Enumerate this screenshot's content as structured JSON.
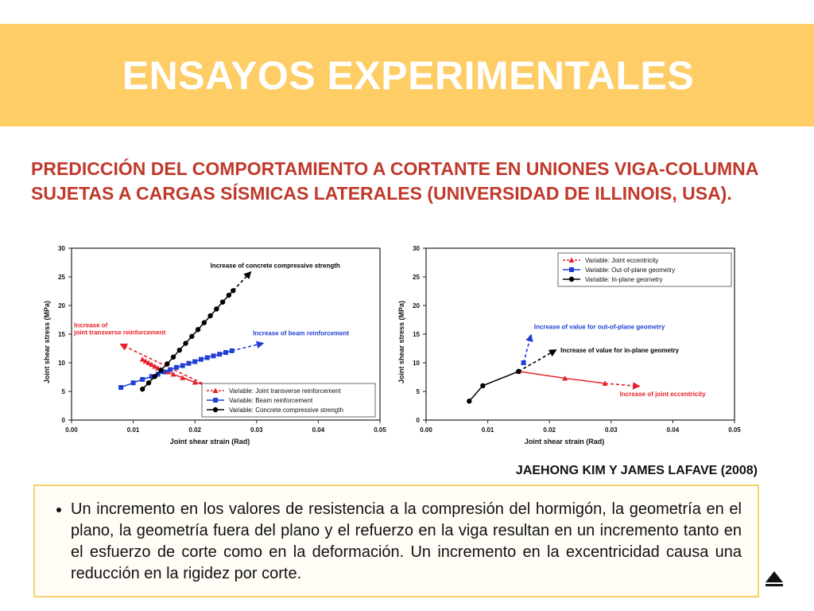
{
  "slide": {
    "title": "ENSAYOS EXPERIMENTALES",
    "subtitle": "PREDICCIÓN DEL COMPORTAMIENTO A CORTANTE EN UNIONES VIGA-COLUMNA SUJETAS A CARGAS SÍSMICAS LATERALES (UNIVERSIDAD DE ILLINOIS, USA).",
    "citation": "JAEHONG KIM Y JAMES LAFAVE (2008)",
    "bullet": "Un incremento en los valores de resistencia a la compresión del hormigón, la geometría en el plano, la geometría fuera del plano y  el refuerzo en la viga resultan en un incremento tanto en el esfuerzo de corte como en la deformación. Un incremento en la excentricidad causa una reducción en la rigidez por corte.",
    "colors": {
      "banner": "#fecd66",
      "title_text": "#ffffff",
      "subtitle_text": "#c0392b",
      "box_border": "#f3d26b"
    },
    "nav_icon": "triangle-up-icon"
  },
  "chart_data": [
    {
      "type": "scatter",
      "title": "",
      "xlabel": "Joint shear strain (Rad)",
      "ylabel": "Joint shear stress (MPa)",
      "xlim": [
        0,
        0.05
      ],
      "ylim": [
        0,
        30
      ],
      "xticks": [
        "0.00",
        "0.01",
        "0.02",
        "0.03",
        "0.04",
        "0.05"
      ],
      "yticks": [
        "0",
        "5",
        "10",
        "15",
        "20",
        "25",
        "30"
      ],
      "legend_position": "bottom-right",
      "series": [
        {
          "name": "Variable: Joint transverse reinforcement",
          "color": "#e8202a",
          "marker": "triangle",
          "points": [
            [
              0.0115,
              10.6
            ],
            [
              0.012,
              10.3
            ],
            [
              0.0125,
              10.0
            ],
            [
              0.013,
              9.7
            ],
            [
              0.0135,
              9.4
            ],
            [
              0.014,
              9.1
            ],
            [
              0.0145,
              8.8
            ],
            [
              0.0155,
              8.4
            ],
            [
              0.0165,
              8.0
            ],
            [
              0.018,
              7.4
            ],
            [
              0.02,
              6.6
            ],
            [
              0.022,
              6.0
            ]
          ],
          "trend": [
            [
              0.022,
              6.0
            ],
            [
              0.008,
              13.2
            ]
          ]
        },
        {
          "name": "Variable: Beam reinforcement",
          "color": "#1f3fd6",
          "marker": "square",
          "points": [
            [
              0.008,
              5.7
            ],
            [
              0.01,
              6.5
            ],
            [
              0.0115,
              7.1
            ],
            [
              0.013,
              7.6
            ],
            [
              0.014,
              8.0
            ],
            [
              0.015,
              8.4
            ],
            [
              0.016,
              8.8
            ],
            [
              0.017,
              9.2
            ],
            [
              0.018,
              9.5
            ],
            [
              0.019,
              9.9
            ],
            [
              0.02,
              10.2
            ],
            [
              0.021,
              10.6
            ],
            [
              0.022,
              10.9
            ],
            [
              0.023,
              11.2
            ],
            [
              0.024,
              11.5
            ],
            [
              0.025,
              11.8
            ],
            [
              0.026,
              12.1
            ]
          ],
          "trend": [
            [
              0.026,
              12.1
            ],
            [
              0.031,
              13.4
            ]
          ]
        },
        {
          "name": "Variable: Concrete compressive strength",
          "color": "#000000",
          "marker": "circle",
          "points": [
            [
              0.0115,
              5.4
            ],
            [
              0.0125,
              6.5
            ],
            [
              0.0135,
              7.6
            ],
            [
              0.0145,
              8.7
            ],
            [
              0.0155,
              9.8
            ],
            [
              0.0165,
              11.0
            ],
            [
              0.0175,
              12.2
            ],
            [
              0.0185,
              13.4
            ],
            [
              0.0195,
              14.6
            ],
            [
              0.0205,
              15.8
            ],
            [
              0.0215,
              17.0
            ],
            [
              0.0225,
              18.2
            ],
            [
              0.0235,
              19.4
            ],
            [
              0.0245,
              20.6
            ],
            [
              0.0255,
              21.8
            ],
            [
              0.0262,
              22.6
            ]
          ],
          "trend": [
            [
              0.0262,
              22.6
            ],
            [
              0.029,
              25.8
            ]
          ]
        }
      ],
      "annotations": [
        {
          "text": "Increase of concrete compressive strength",
          "x": 0.0225,
          "y": 26.6,
          "color": "#000000"
        },
        {
          "text": "Increase of beam reinforcement",
          "x": 0.0294,
          "y": 14.8,
          "color": "#1f3fd6"
        },
        {
          "text": "Increase of",
          "x": 0.0004,
          "y": 16.2,
          "color": "#e8202a"
        },
        {
          "text": "joint transverse reinforcement",
          "x": 0.0004,
          "y": 14.9,
          "color": "#e8202a"
        }
      ]
    },
    {
      "type": "line",
      "title": "",
      "xlabel": "Joint shear strain (Rad)",
      "ylabel": "Joint shear stress (MPa)",
      "xlim": [
        0,
        0.05
      ],
      "ylim": [
        0,
        30
      ],
      "xticks": [
        "0.00",
        "0.01",
        "0.02",
        "0.03",
        "0.04",
        "0.05"
      ],
      "yticks": [
        "0",
        "5",
        "10",
        "15",
        "20",
        "25",
        "30"
      ],
      "legend_position": "top-right",
      "series": [
        {
          "name": "Variable: Joint eccentricity",
          "color": "#e8202a",
          "marker": "triangle",
          "points": [
            [
              0.015,
              8.5
            ],
            [
              0.0225,
              7.3
            ],
            [
              0.029,
              6.4
            ]
          ],
          "trend": [
            [
              0.029,
              6.4
            ],
            [
              0.0345,
              5.9
            ]
          ]
        },
        {
          "name": "Variable: Out-of-plane geometry",
          "color": "#1f3fd6",
          "marker": "square",
          "points": [
            [
              0.0158,
              10.0
            ]
          ],
          "trend": [
            [
              0.0158,
              10.0
            ],
            [
              0.017,
              14.8
            ]
          ]
        },
        {
          "name": "Variable: In-plane geometry",
          "color": "#000000",
          "marker": "circle",
          "points": [
            [
              0.007,
              3.3
            ],
            [
              0.0092,
              6.0
            ],
            [
              0.015,
              8.5
            ]
          ],
          "trend": [
            [
              0.015,
              8.5
            ],
            [
              0.021,
              12.2
            ]
          ]
        }
      ],
      "annotations": [
        {
          "text": "Increase of value for out-of-plane geometry",
          "x": 0.0175,
          "y": 15.9,
          "color": "#1f3fd6"
        },
        {
          "text": "Increase of value for in-plane geometry",
          "x": 0.0218,
          "y": 11.8,
          "color": "#000000"
        },
        {
          "text": "Increase of joint eccentricity",
          "x": 0.0314,
          "y": 4.2,
          "color": "#e8202a"
        }
      ]
    }
  ]
}
